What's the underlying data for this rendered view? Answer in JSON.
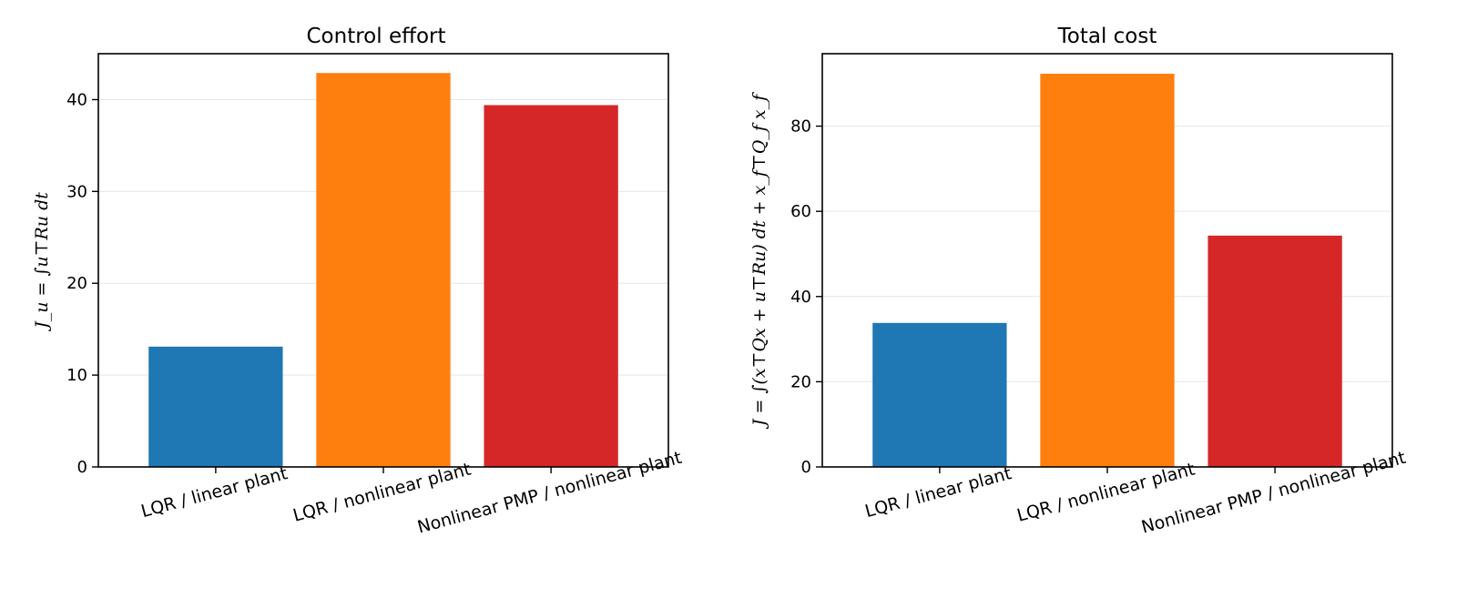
{
  "chart_data": [
    {
      "type": "bar",
      "title": "Control effort",
      "ylabel": "J_u = ∫u⊤Ru dt",
      "xlabel": "",
      "categories": [
        "LQR / linear plant",
        "LQR / nonlinear plant",
        "Nonlinear PMP / nonlinear plant"
      ],
      "values": [
        13.1,
        42.9,
        39.4
      ],
      "colors": [
        "#1f77b4",
        "#ff7f0e",
        "#d62728"
      ],
      "ylim": [
        0,
        45
      ],
      "yticks": [
        0,
        10,
        20,
        30,
        40
      ],
      "grid": "y"
    },
    {
      "type": "bar",
      "title": "Total cost",
      "ylabel": "J = ∫(x⊤Qx + u⊤Ru) dt + x_f⊤Q_f x_f",
      "xlabel": "",
      "categories": [
        "LQR / linear plant",
        "LQR / nonlinear plant",
        "Nonlinear PMP / nonlinear plant"
      ],
      "values": [
        33.8,
        92.3,
        54.3
      ],
      "colors": [
        "#1f77b4",
        "#ff7f0e",
        "#d62728"
      ],
      "ylim": [
        0,
        97
      ],
      "yticks": [
        0,
        20,
        40,
        60,
        80
      ],
      "grid": "y"
    }
  ]
}
